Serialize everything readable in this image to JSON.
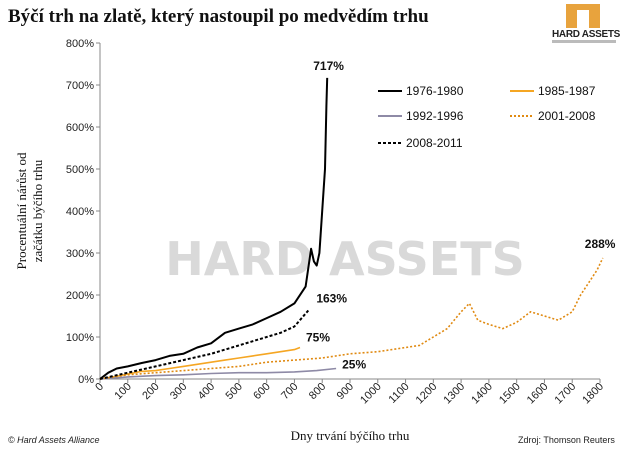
{
  "page_title": "Býčí trh na zlatě, který nastoupil po medvědím trhu",
  "logo": {
    "text": "HARD ASSETS"
  },
  "watermark": "HARD ASSETS",
  "footer": {
    "left": "© Hard Assets Alliance",
    "right": "Zdroj:  Thomson Reuters"
  },
  "colors": {
    "s1976": "#000000",
    "s1985": "#f5a623",
    "s1992": "#8e8aa6",
    "s2001": "#e08a12",
    "s2008": "#000000"
  },
  "chart_data": {
    "type": "line",
    "xlabel": "Dny trvání býčího trhu",
    "ylabel": "Procentuální nárůst od začátku býčího trhu",
    "ylabel_lines": [
      "Procentuální nárůst od",
      "začátku býčího trhu"
    ],
    "xlim": [
      0,
      1800
    ],
    "ylim": [
      0,
      800
    ],
    "x_ticks": [
      "0",
      "100",
      "200",
      "300",
      "400",
      "500",
      "600",
      "700",
      "800",
      "900",
      "1000",
      "1100",
      "1200",
      "1300",
      "1400",
      "1500",
      "1600",
      "1700",
      "1800"
    ],
    "y_ticks": [
      "0%",
      "100%",
      "200%",
      "300%",
      "400%",
      "500%",
      "600%",
      "700%",
      "800%"
    ],
    "legend_position": "top-right",
    "series": [
      {
        "name": "1976-1980",
        "style": "solid",
        "color": "#000000",
        "x": [
          0,
          30,
          60,
          100,
          150,
          200,
          250,
          300,
          350,
          400,
          450,
          500,
          550,
          600,
          650,
          700,
          740,
          760,
          770,
          780,
          790,
          800,
          810,
          815,
          818
        ],
        "y": [
          0,
          15,
          25,
          30,
          38,
          45,
          55,
          60,
          75,
          85,
          110,
          120,
          130,
          145,
          160,
          180,
          220,
          310,
          280,
          270,
          300,
          400,
          500,
          650,
          717
        ]
      },
      {
        "name": "1985-1987",
        "style": "solid",
        "color": "#f5a623",
        "x": [
          0,
          50,
          100,
          150,
          200,
          250,
          300,
          350,
          400,
          450,
          500,
          550,
          600,
          650,
          700,
          720
        ],
        "y": [
          0,
          5,
          12,
          18,
          20,
          25,
          30,
          35,
          40,
          45,
          50,
          55,
          60,
          65,
          70,
          75
        ]
      },
      {
        "name": "1992-1996",
        "style": "solid",
        "color": "#8e8aa6",
        "x": [
          0,
          100,
          200,
          300,
          400,
          500,
          600,
          700,
          780,
          850
        ],
        "y": [
          0,
          5,
          8,
          10,
          13,
          15,
          15,
          17,
          20,
          25
        ]
      },
      {
        "name": "2001-2008",
        "style": "dotted",
        "color": "#e08a12",
        "x": [
          0,
          100,
          200,
          300,
          400,
          500,
          600,
          700,
          800,
          900,
          1000,
          1100,
          1150,
          1200,
          1250,
          1300,
          1330,
          1360,
          1400,
          1450,
          1500,
          1550,
          1600,
          1650,
          1700,
          1730,
          1760,
          1790,
          1810
        ],
        "y": [
          0,
          10,
          15,
          20,
          25,
          30,
          40,
          45,
          50,
          60,
          65,
          75,
          80,
          100,
          120,
          160,
          180,
          140,
          130,
          120,
          135,
          160,
          150,
          140,
          160,
          200,
          230,
          260,
          288
        ]
      },
      {
        "name": "2008-2011",
        "style": "dashed",
        "color": "#000000",
        "x": [
          0,
          100,
          200,
          300,
          400,
          500,
          600,
          650,
          700,
          750
        ],
        "y": [
          0,
          15,
          30,
          45,
          60,
          80,
          100,
          110,
          125,
          163
        ]
      }
    ],
    "annotations": [
      {
        "text": "717%",
        "x": 818,
        "y": 717
      },
      {
        "text": "163%",
        "x": 750,
        "y": 163
      },
      {
        "text": "75%",
        "x": 720,
        "y": 75
      },
      {
        "text": "25%",
        "x": 850,
        "y": 25
      },
      {
        "text": "288%",
        "x": 1810,
        "y": 288
      }
    ]
  }
}
